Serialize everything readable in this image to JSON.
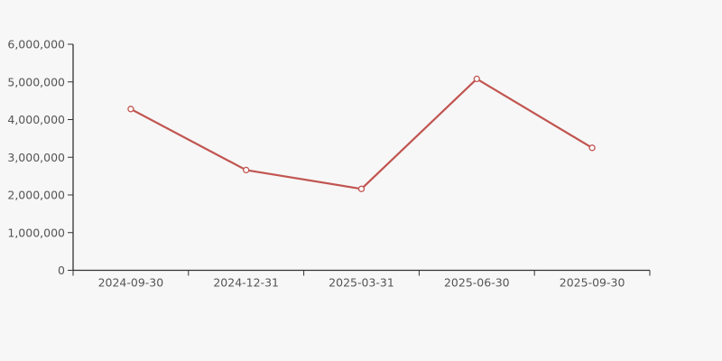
{
  "page": {
    "background": "#f7f7f7"
  },
  "chart_data": {
    "type": "line",
    "title": "",
    "xlabel": "",
    "ylabel": "",
    "categories": [
      "2024-09-30",
      "2024-12-31",
      "2025-03-31",
      "2025-06-30",
      "2025-09-30"
    ],
    "series": [
      {
        "name": "series-1",
        "values": [
          4280000,
          2660000,
          2160000,
          5080000,
          3250000
        ],
        "color": "#c15551",
        "marker": "open-circle",
        "marker_fill": "#ffffff"
      }
    ],
    "ylim": [
      0,
      6000000
    ],
    "y_tick_interval": 1000000,
    "y_tick_labels": [
      "0",
      "1,000,000",
      "2,000,000",
      "3,000,000",
      "4,000,000",
      "5,000,000",
      "6,000,000"
    ],
    "grid": false,
    "legend": false,
    "axis_color": "#333333",
    "label_color": "#555555"
  }
}
